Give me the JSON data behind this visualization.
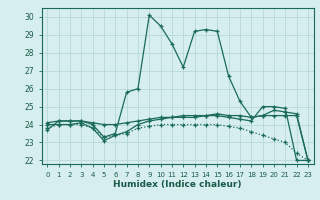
{
  "xlabel": "Humidex (Indice chaleur)",
  "background_color": "#d6eeee",
  "grid_color": "#b8d8d8",
  "line_color": "#1a6b5a",
  "xlim": [
    -0.5,
    23.5
  ],
  "ylim": [
    21.8,
    30.5
  ],
  "yticks": [
    22,
    23,
    24,
    25,
    26,
    27,
    28,
    29,
    30
  ],
  "xticks": [
    0,
    1,
    2,
    3,
    4,
    5,
    6,
    7,
    8,
    9,
    10,
    11,
    12,
    13,
    14,
    15,
    16,
    17,
    18,
    19,
    20,
    21,
    22,
    23
  ],
  "series": [
    {
      "x": [
        0,
        1,
        2,
        3,
        4,
        5,
        6,
        7,
        8,
        9,
        10,
        11,
        12,
        13,
        14,
        15,
        16,
        17,
        18,
        19,
        20,
        21,
        22,
        23
      ],
      "y": [
        23.7,
        24.2,
        24.2,
        24.2,
        24.0,
        23.3,
        23.5,
        25.8,
        26.0,
        30.1,
        29.5,
        28.5,
        27.2,
        29.2,
        29.3,
        29.2,
        26.7,
        25.3,
        24.4,
        24.5,
        24.8,
        24.7,
        24.6,
        22.0
      ],
      "linestyle": "-",
      "marker": "+"
    },
    {
      "x": [
        0,
        1,
        2,
        3,
        4,
        5,
        6,
        7,
        8,
        9,
        10,
        11,
        12,
        13,
        14,
        15,
        16,
        17,
        18,
        19,
        20,
        21,
        22,
        23
      ],
      "y": [
        24.1,
        24.2,
        24.2,
        24.2,
        24.1,
        24.0,
        24.0,
        24.1,
        24.2,
        24.3,
        24.4,
        24.4,
        24.5,
        24.5,
        24.5,
        24.6,
        24.5,
        24.5,
        24.4,
        24.5,
        24.5,
        24.5,
        24.5,
        22.0
      ],
      "linestyle": "-",
      "marker": "+"
    },
    {
      "x": [
        0,
        1,
        2,
        3,
        4,
        5,
        6,
        7,
        8,
        9,
        10,
        11,
        12,
        13,
        14,
        15,
        16,
        17,
        18,
        19,
        20,
        21,
        22,
        23
      ],
      "y": [
        24.0,
        24.0,
        24.0,
        24.1,
        23.8,
        23.1,
        23.4,
        23.6,
        24.0,
        24.2,
        24.3,
        24.4,
        24.4,
        24.4,
        24.5,
        24.5,
        24.4,
        24.3,
        24.2,
        25.0,
        25.0,
        24.9,
        22.0,
        22.0
      ],
      "linestyle": "-",
      "marker": "+"
    },
    {
      "x": [
        0,
        1,
        2,
        3,
        4,
        5,
        6,
        7,
        8,
        9,
        10,
        11,
        12,
        13,
        14,
        15,
        16,
        17,
        18,
        19,
        20,
        21,
        22,
        23
      ],
      "y": [
        23.8,
        24.0,
        24.0,
        24.0,
        23.8,
        23.3,
        23.4,
        23.5,
        23.8,
        23.9,
        24.0,
        24.0,
        24.0,
        24.0,
        24.0,
        24.0,
        23.9,
        23.8,
        23.6,
        23.4,
        23.2,
        23.0,
        22.4,
        22.0
      ],
      "linestyle": ":",
      "marker": "+"
    }
  ]
}
